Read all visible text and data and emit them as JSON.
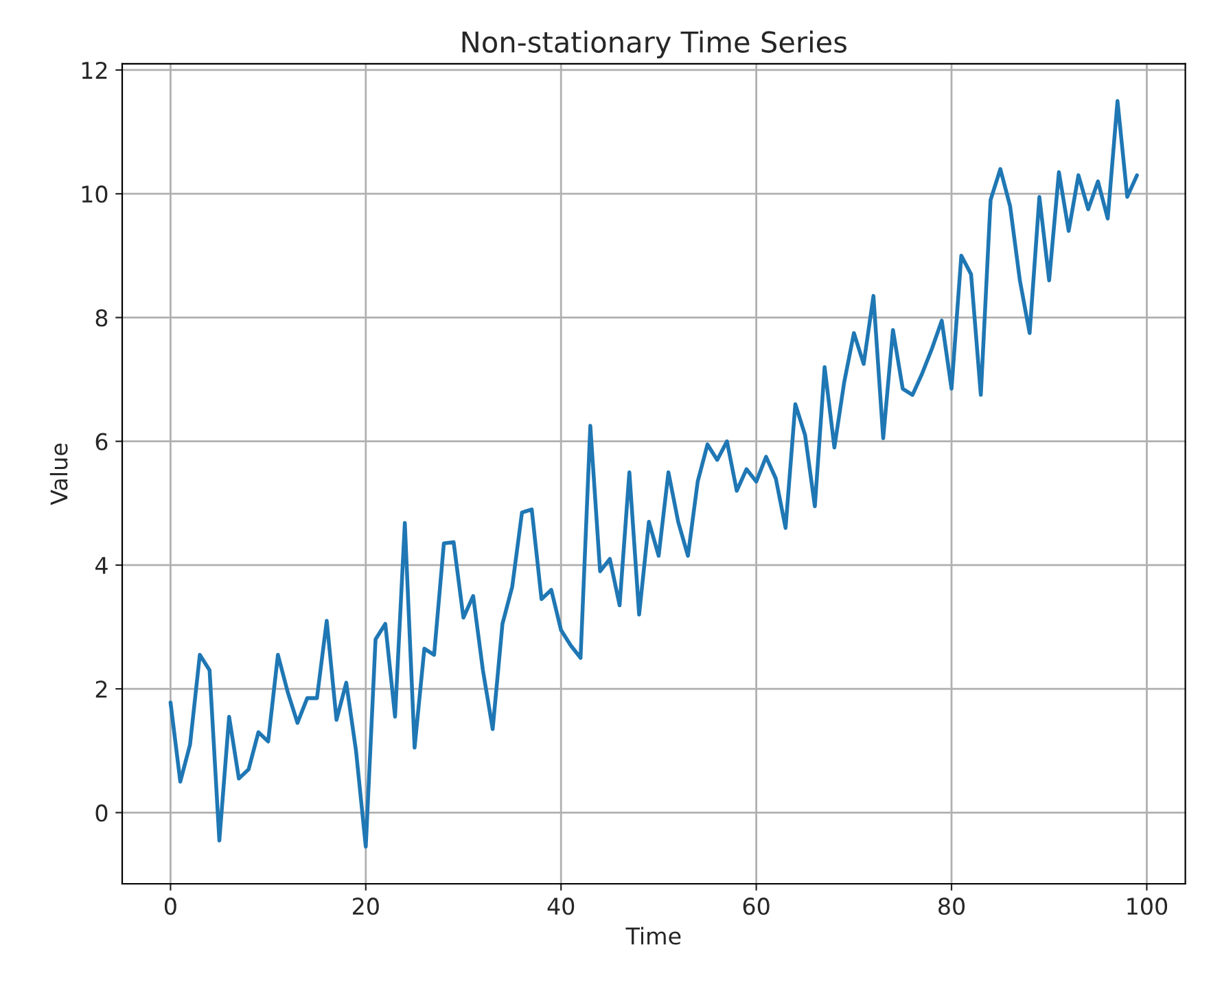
{
  "chart_data": {
    "type": "line",
    "title": "Non-stationary Time Series",
    "xlabel": "Time",
    "ylabel": "Value",
    "x": [
      0,
      1,
      2,
      3,
      4,
      5,
      6,
      7,
      8,
      9,
      10,
      11,
      12,
      13,
      14,
      15,
      16,
      17,
      18,
      19,
      20,
      21,
      22,
      23,
      24,
      25,
      26,
      27,
      28,
      29,
      30,
      31,
      32,
      33,
      34,
      35,
      36,
      37,
      38,
      39,
      40,
      41,
      42,
      43,
      44,
      45,
      46,
      47,
      48,
      49,
      50,
      51,
      52,
      53,
      54,
      55,
      56,
      57,
      58,
      59,
      60,
      61,
      62,
      63,
      64,
      65,
      66,
      67,
      68,
      69,
      70,
      71,
      72,
      73,
      74,
      75,
      76,
      77,
      78,
      79,
      80,
      81,
      82,
      83,
      84,
      85,
      86,
      87,
      88,
      89,
      90,
      91,
      92,
      93,
      94,
      95,
      96,
      97,
      98,
      99
    ],
    "series": [
      {
        "color": "#1f77b4",
        "values": [
          1.78,
          0.5,
          1.1,
          2.55,
          2.3,
          -0.45,
          1.55,
          0.55,
          0.7,
          1.3,
          1.15,
          2.55,
          1.95,
          1.45,
          1.85,
          1.85,
          3.1,
          1.5,
          2.1,
          1.0,
          -0.55,
          2.8,
          3.05,
          1.55,
          4.68,
          1.05,
          2.65,
          2.55,
          4.35,
          4.37,
          3.15,
          3.5,
          2.3,
          1.35,
          3.05,
          3.65,
          4.85,
          4.9,
          3.45,
          3.6,
          2.95,
          2.7,
          2.5,
          6.25,
          3.9,
          4.1,
          3.35,
          5.5,
          3.2,
          4.7,
          4.15,
          5.5,
          4.7,
          4.15,
          5.35,
          5.95,
          5.7,
          6.0,
          5.2,
          5.55,
          5.35,
          5.75,
          5.4,
          4.6,
          6.6,
          6.1,
          4.95,
          7.2,
          5.9,
          6.95,
          7.75,
          7.25,
          8.35,
          6.05,
          7.8,
          6.85,
          6.75,
          7.1,
          7.5,
          7.95,
          6.85,
          9.0,
          8.7,
          6.75,
          9.9,
          10.4,
          9.8,
          8.6,
          7.75,
          9.95,
          8.6,
          10.35,
          9.4,
          10.3,
          9.75,
          10.2,
          9.6,
          11.5,
          9.95,
          10.3
        ]
      }
    ],
    "xlim": [
      -4.95,
      103.95
    ],
    "xticks": [
      0,
      20,
      40,
      60,
      80,
      100
    ],
    "ylim": [
      -1.15,
      12.1
    ],
    "yticks": [
      0,
      2,
      4,
      6,
      8,
      10,
      12
    ],
    "grid": true,
    "line_style": "solid",
    "marker": "none"
  }
}
